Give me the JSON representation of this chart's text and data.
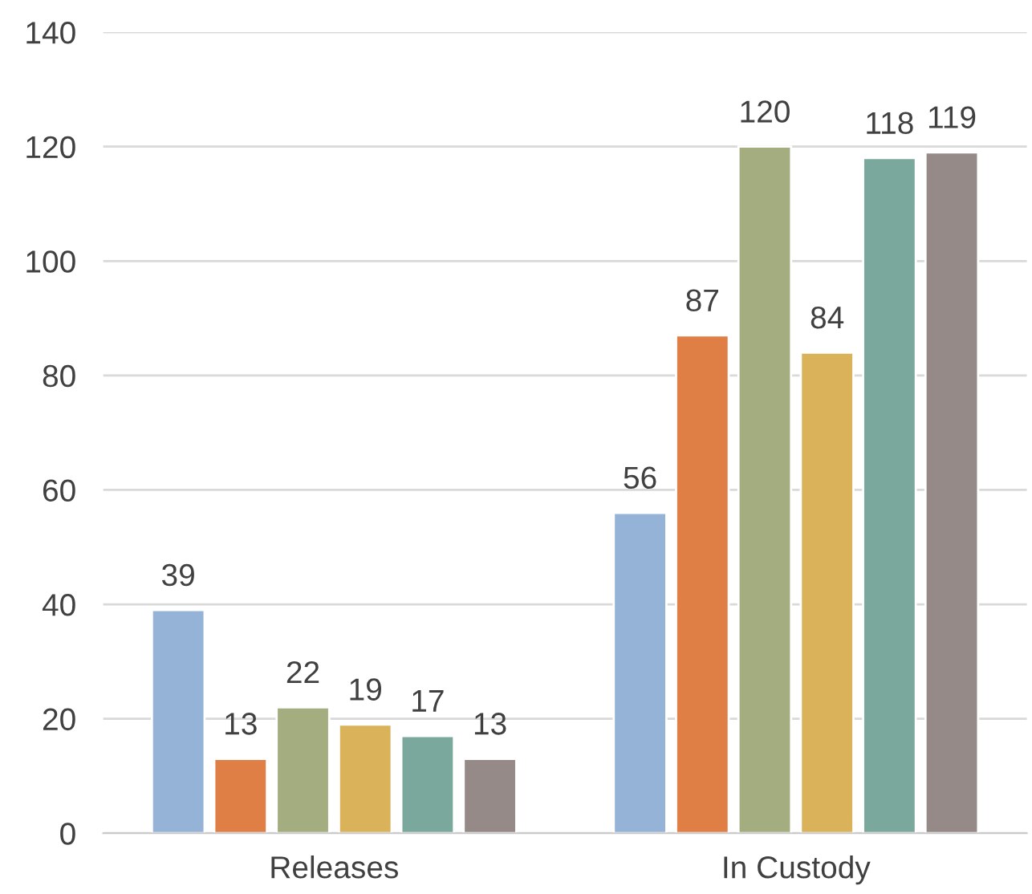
{
  "chart_data": {
    "type": "bar",
    "categories": [
      "Releases",
      "In Custody"
    ],
    "series": [
      {
        "color": "#95b3d7",
        "values": [
          39,
          56
        ]
      },
      {
        "color": "#e07f45",
        "values": [
          13,
          87
        ]
      },
      {
        "color": "#a3ad7f",
        "values": [
          22,
          120
        ]
      },
      {
        "color": "#d9b25a",
        "values": [
          19,
          84
        ]
      },
      {
        "color": "#7aa89c",
        "values": [
          17,
          118
        ]
      },
      {
        "color": "#968a89",
        "values": [
          13,
          119
        ]
      }
    ],
    "ylim": [
      0,
      140
    ],
    "yticks": [
      0,
      20,
      40,
      60,
      80,
      100,
      120,
      140
    ],
    "grid": "y",
    "data_labels": true,
    "legend": false
  }
}
